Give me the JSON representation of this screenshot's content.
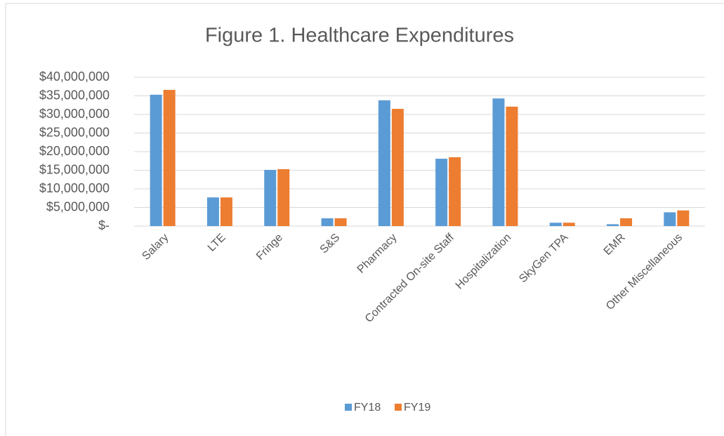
{
  "chart_data": {
    "type": "bar",
    "title": "Figure 1. Healthcare Expenditures",
    "categories": [
      "Salary",
      "LTE",
      "Fringe",
      "S&S",
      "Pharmacy",
      "Contracted On-site Staff",
      "Hospitalization",
      "SkyGen TPA",
      "EMR",
      "Other Miscellaneous"
    ],
    "series": [
      {
        "name": "FY18",
        "color": "#5b9bd5",
        "values": [
          35300000,
          7700000,
          15100000,
          2100000,
          33800000,
          18100000,
          34300000,
          900000,
          500000,
          3700000
        ]
      },
      {
        "name": "FY19",
        "color": "#ed7d31",
        "values": [
          36600000,
          7700000,
          15300000,
          2100000,
          31500000,
          18500000,
          32100000,
          900000,
          2100000,
          4200000
        ]
      }
    ],
    "ylim": [
      0,
      40000000
    ],
    "yticks": [
      {
        "value": 0,
        "label": "$-"
      },
      {
        "value": 5000000,
        "label": "$5,000,000"
      },
      {
        "value": 10000000,
        "label": "$10,000,000"
      },
      {
        "value": 15000000,
        "label": "$15,000,000"
      },
      {
        "value": 20000000,
        "label": "$20,000,000"
      },
      {
        "value": 25000000,
        "label": "$25,000,000"
      },
      {
        "value": 30000000,
        "label": "$30,000,000"
      },
      {
        "value": 35000000,
        "label": "$35,000,000"
      },
      {
        "value": 40000000,
        "label": "$40,000,000"
      }
    ],
    "grid": true,
    "legend": "bottom"
  }
}
